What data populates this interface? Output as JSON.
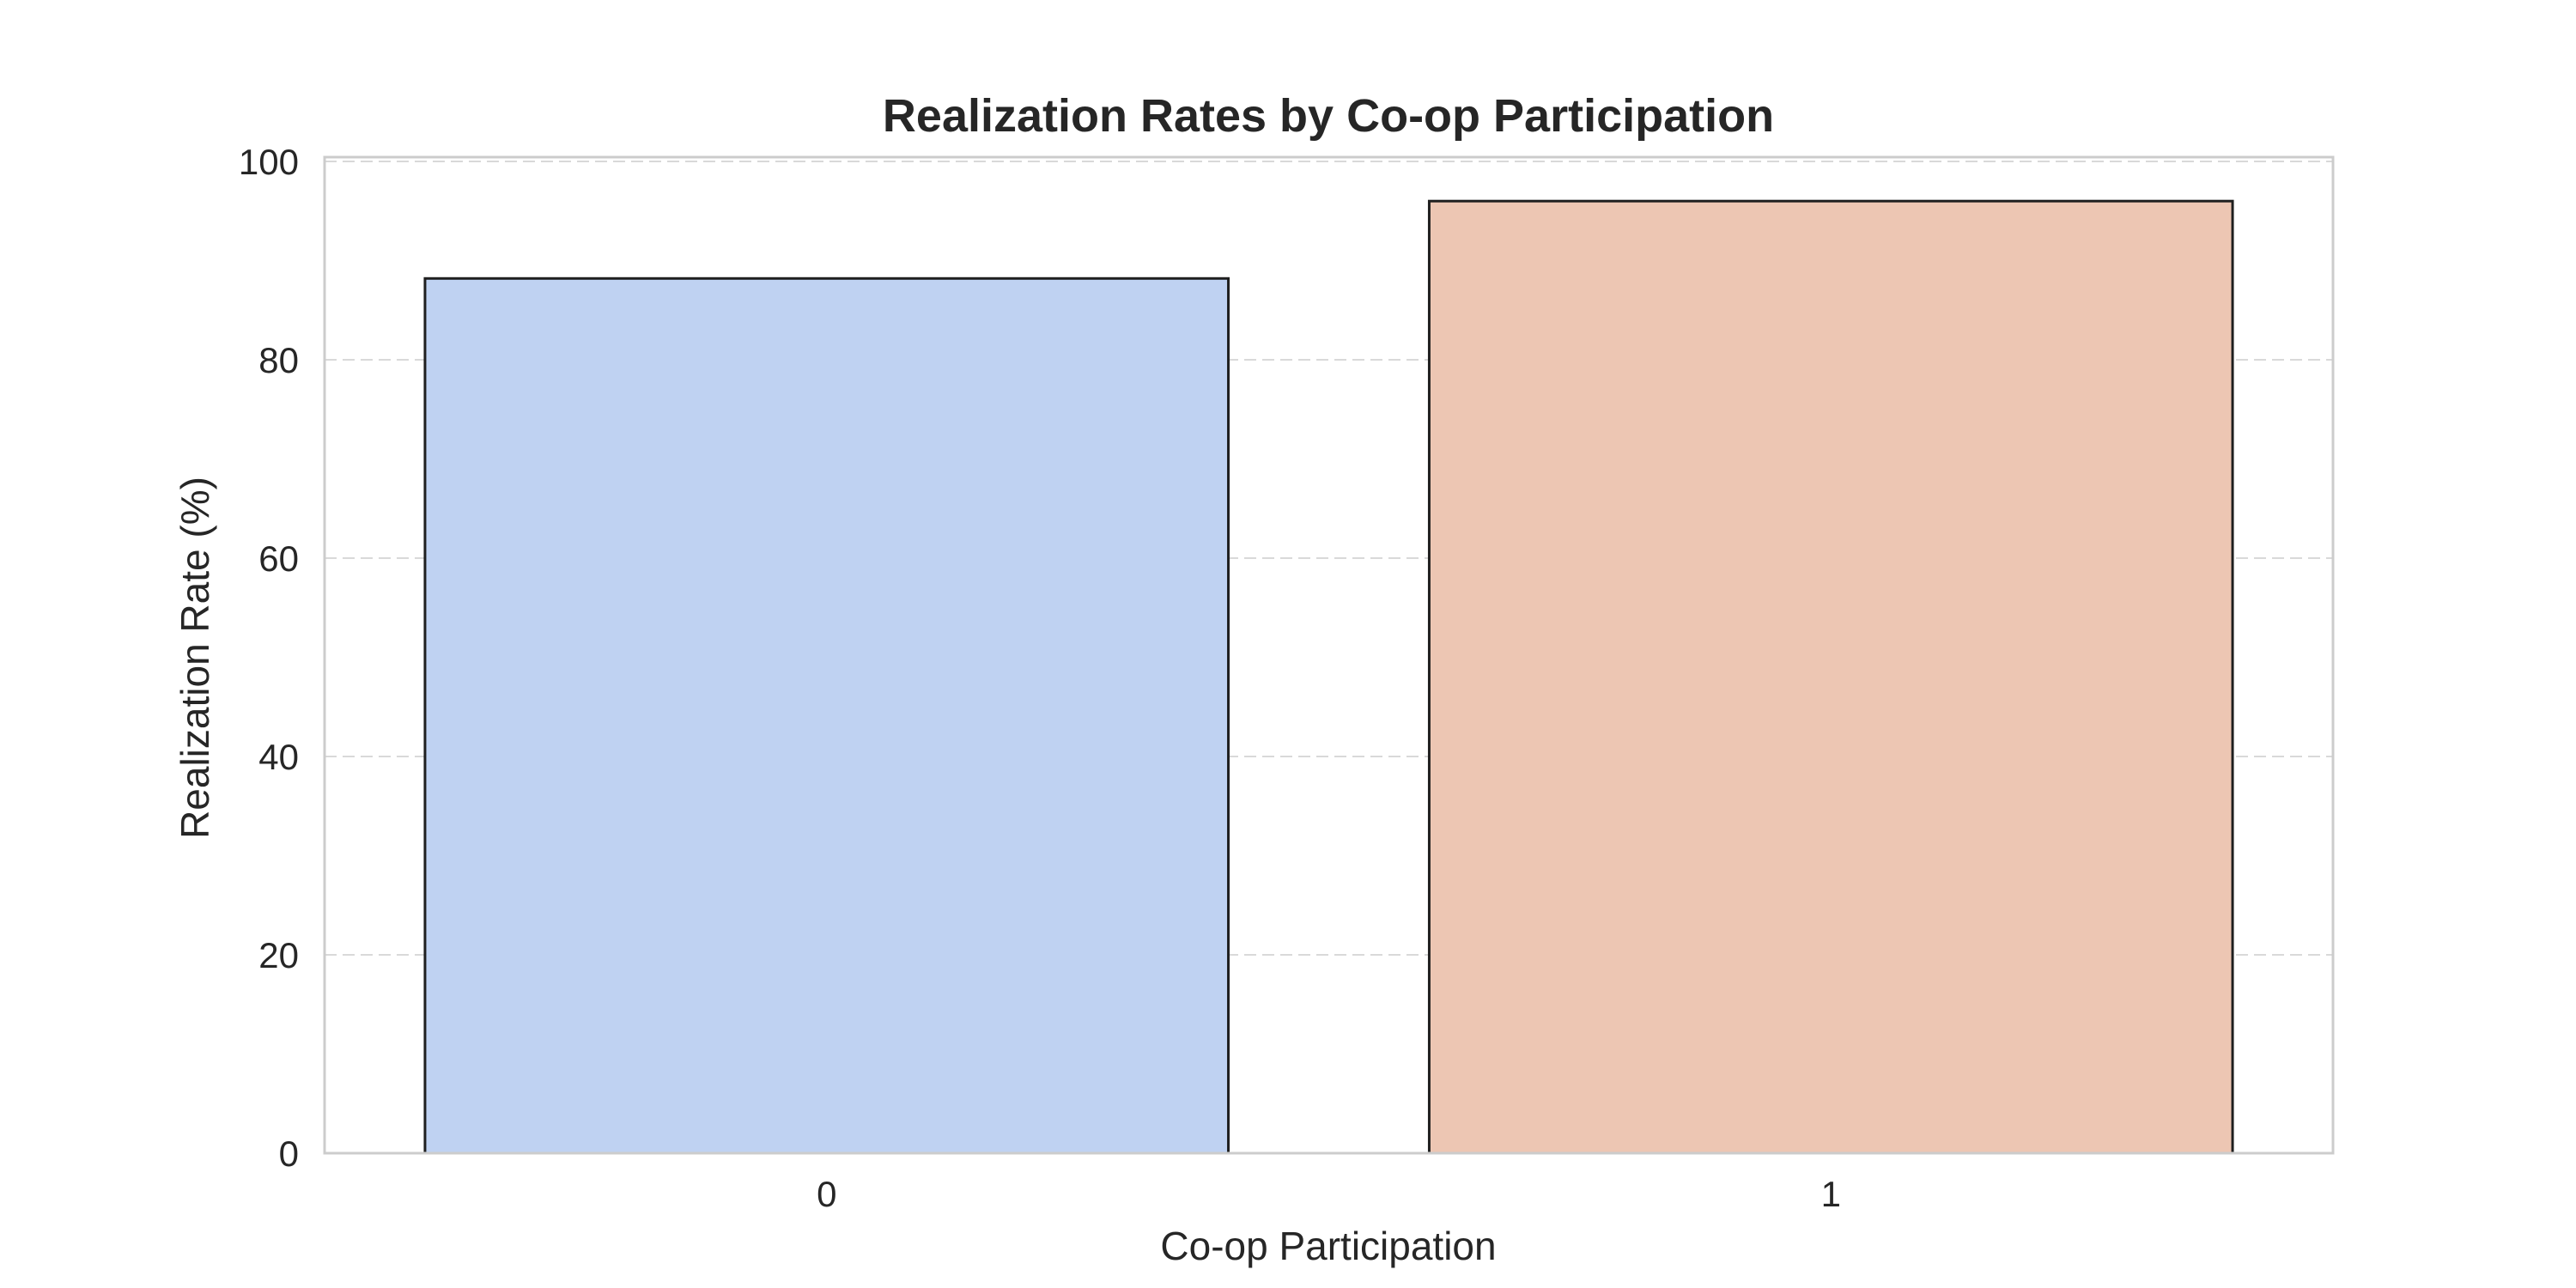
{
  "chart_data": {
    "type": "bar",
    "title": "Realization Rates by Co-op Participation",
    "xlabel": "Co-op Participation",
    "ylabel": "Realization Rate (%)",
    "categories": [
      "0",
      "1"
    ],
    "values": [
      88.2,
      96.0
    ],
    "ylim": [
      0,
      100
    ],
    "yticks": [
      0,
      20,
      40,
      60,
      80,
      100
    ],
    "bar_colors": [
      "#bfd2f2",
      "#edc6b3"
    ],
    "grid": "y-dashed",
    "legend": "none"
  }
}
